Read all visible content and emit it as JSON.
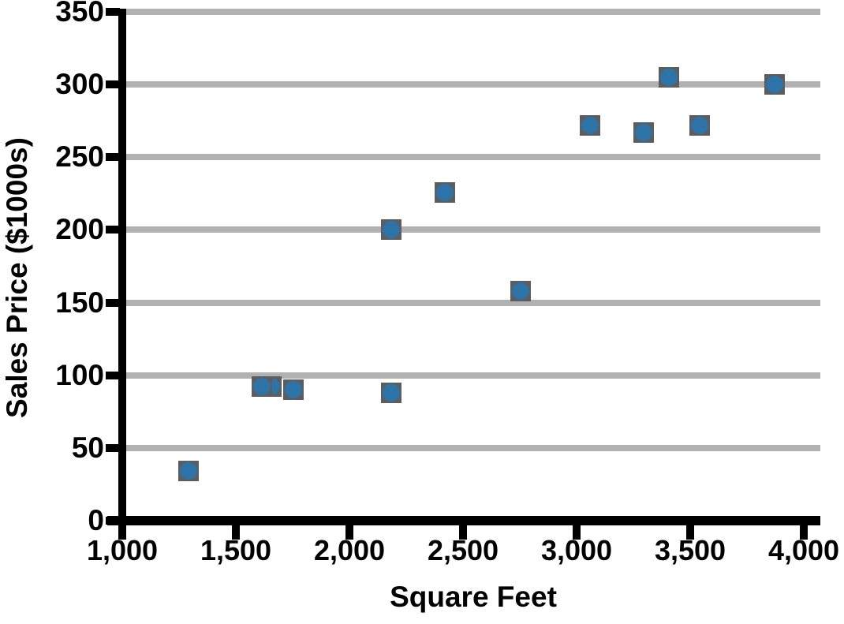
{
  "chart_data": {
    "type": "scatter",
    "title": "",
    "xlabel": "Square Feet",
    "ylabel": "Sales Price ($1000s)",
    "xlim": [
      1000,
      4000
    ],
    "ylim": [
      0,
      350
    ],
    "x_tick_values": [
      1000,
      1500,
      2000,
      2500,
      3000,
      3500,
      4000
    ],
    "x_tick_labels": [
      "1,000",
      "1,500",
      "2,000",
      "2,500",
      "3,000",
      "3,500",
      "4,000"
    ],
    "y_tick_values": [
      0,
      50,
      100,
      150,
      200,
      250,
      300,
      350
    ],
    "y_tick_labels": [
      "0",
      "50",
      "100",
      "150",
      "200",
      "250",
      "300",
      "350"
    ],
    "grid": "horizontal",
    "legend_position": "none",
    "points": [
      {
        "x": 1290,
        "y": 34
      },
      {
        "x": 1655,
        "y": 92
      },
      {
        "x": 1615,
        "y": 92
      },
      {
        "x": 1755,
        "y": 90
      },
      {
        "x": 2185,
        "y": 88
      },
      {
        "x": 2185,
        "y": 200
      },
      {
        "x": 2420,
        "y": 226
      },
      {
        "x": 2755,
        "y": 158
      },
      {
        "x": 3060,
        "y": 272
      },
      {
        "x": 3295,
        "y": 267
      },
      {
        "x": 3405,
        "y": 305
      },
      {
        "x": 3540,
        "y": 272
      },
      {
        "x": 3870,
        "y": 300
      }
    ],
    "marker": {
      "shape": "circle-on-square",
      "circle_color": "#2e73a8",
      "square_color": "#5d5d5d"
    }
  },
  "colors": {
    "background": "#ffffff",
    "gridline": "#b1b1b1",
    "axis": "#000000",
    "text": "#000000",
    "marker_fill": "#2e73a8",
    "marker_edge": "#5d5d5d"
  }
}
